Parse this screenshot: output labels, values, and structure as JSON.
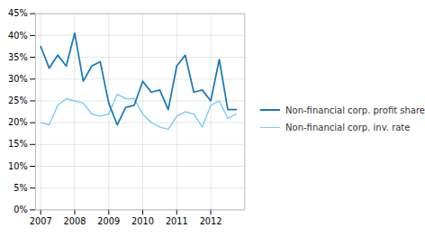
{
  "chart_data": {
    "type": "line",
    "x": [
      2007.0,
      2007.25,
      2007.5,
      2007.75,
      2008.0,
      2008.25,
      2008.5,
      2008.75,
      2009.0,
      2009.25,
      2009.5,
      2009.75,
      2010.0,
      2010.25,
      2010.5,
      2010.75,
      2011.0,
      2011.25,
      2011.5,
      2011.75,
      2012.0,
      2012.25,
      2012.5,
      2012.75
    ],
    "series": [
      {
        "name": "Non-financial corp. profit share",
        "color": "#1a7ab5",
        "values": [
          37.5,
          32.5,
          35.5,
          33.0,
          40.5,
          29.5,
          33.0,
          34.0,
          24.5,
          19.5,
          23.5,
          24.0,
          29.5,
          27.0,
          27.5,
          23.0,
          33.0,
          35.5,
          27.0,
          27.5,
          25.0,
          34.5,
          23.0,
          23.0
        ]
      },
      {
        "name": "Non-financial corp. inv. rate",
        "color": "#7ecef4",
        "values": [
          20.0,
          19.5,
          24.0,
          25.5,
          25.0,
          24.5,
          22.0,
          21.5,
          22.0,
          26.5,
          25.5,
          25.5,
          22.0,
          20.0,
          19.0,
          18.5,
          21.5,
          22.5,
          22.0,
          19.0,
          24.0,
          25.0,
          21.0,
          22.0
        ]
      }
    ],
    "xlim": [
      2006.85,
      2013.0
    ],
    "xticks": [
      2007,
      2008,
      2009,
      2010,
      2011,
      2012
    ],
    "ylim": [
      0,
      45
    ],
    "yticks": [
      {
        "value": 0,
        "label": "0%"
      },
      {
        "value": 5,
        "label": "5%"
      },
      {
        "value": 10,
        "label": "10%"
      },
      {
        "value": 15,
        "label": "15%"
      },
      {
        "value": 20,
        "label": "20%"
      },
      {
        "value": 25,
        "label": "25%"
      },
      {
        "value": 30,
        "label": "30%"
      },
      {
        "value": 35,
        "label": "35%"
      },
      {
        "value": 40,
        "label": "40%"
      },
      {
        "value": 45,
        "label": "45%"
      }
    ],
    "grid": true,
    "legend": "right"
  }
}
